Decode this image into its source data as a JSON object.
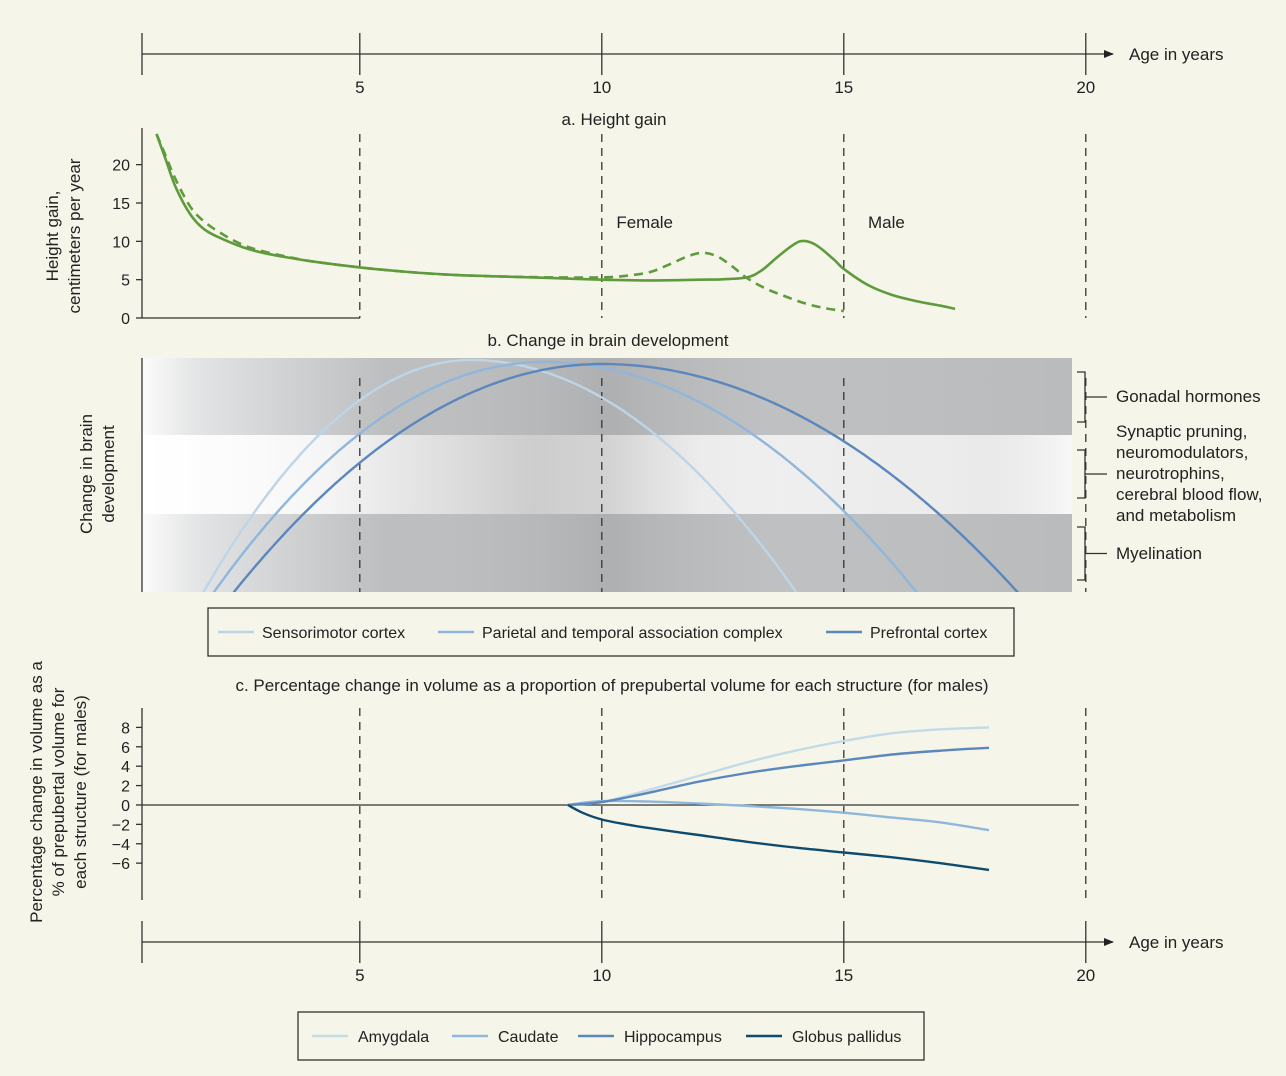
{
  "chart_data": [
    {
      "type": "axis",
      "name": "top-age-axis",
      "xlabel": "Age in years",
      "ticks": [
        5,
        10,
        15,
        20
      ],
      "xlim": [
        0.5,
        20.7
      ]
    },
    {
      "type": "line",
      "title": "a. Height gain",
      "ylabel": [
        "Height gain,",
        "centimeters per year"
      ],
      "xlim": [
        0.5,
        20.7
      ],
      "ylim": [
        0,
        24
      ],
      "yticks": [
        0,
        5,
        10,
        15,
        20
      ],
      "dashed_years": [
        5,
        10,
        15,
        20
      ],
      "annotations": [
        {
          "text": "Female",
          "x": 10.3,
          "y": 12.5
        },
        {
          "text": "Male",
          "x": 15.5,
          "y": 12.5
        }
      ],
      "series": [
        {
          "style": "solid",
          "color": "#5f9a3d",
          "x": [
            0.8,
            1.0,
            1.2,
            1.5,
            1.8,
            2.2,
            2.6,
            3.0,
            3.5,
            4.0,
            5.0,
            6.0,
            7.0,
            8.0,
            9.0,
            10.0,
            11.0,
            12.0,
            12.5,
            13.0,
            13.3,
            13.6,
            13.9,
            14.1,
            14.3,
            14.5,
            14.8,
            15.0,
            15.5,
            16.0,
            16.5,
            17.0,
            17.3
          ],
          "y": [
            24,
            20.5,
            17.0,
            13.5,
            11.5,
            10.2,
            9.2,
            8.5,
            7.9,
            7.4,
            6.6,
            6.0,
            5.6,
            5.4,
            5.2,
            5.0,
            4.9,
            5.0,
            5.05,
            5.3,
            6.2,
            7.8,
            9.3,
            10.0,
            9.9,
            9.2,
            7.6,
            6.4,
            4.3,
            3.0,
            2.2,
            1.6,
            1.2
          ]
        },
        {
          "style": "dashed",
          "color": "#5f9a3d",
          "x": [
            0.8,
            1.0,
            1.2,
            1.5,
            1.8,
            2.2,
            2.6,
            3.0,
            3.5,
            4.0,
            5.0,
            6.0,
            7.0,
            8.0,
            9.0,
            10.0,
            10.5,
            11.0,
            11.4,
            11.8,
            12.1,
            12.4,
            12.7,
            13.0,
            13.4,
            13.8,
            14.2,
            14.6,
            15.0
          ],
          "y": [
            24,
            21.0,
            18.0,
            14.5,
            12.5,
            10.8,
            9.5,
            8.7,
            8.0,
            7.4,
            6.6,
            6.0,
            5.6,
            5.4,
            5.3,
            5.3,
            5.5,
            6.0,
            7.0,
            8.1,
            8.5,
            8.0,
            6.7,
            5.2,
            3.8,
            2.8,
            1.9,
            1.3,
            0.9
          ]
        }
      ]
    },
    {
      "type": "area",
      "title": "b. Change in brain development",
      "ylabel": [
        "Change in brain",
        "development"
      ],
      "xlim": [
        0.5,
        20.7
      ],
      "dashed_years": [
        5,
        10,
        15,
        20
      ],
      "bands": [
        {
          "label": [
            "Gonadal hormones"
          ],
          "color": "#b9bbbd"
        },
        {
          "label": [
            "Synaptic pruning,",
            "neuromodulators,",
            "neurotrophins,",
            "cerebral blood flow,",
            "and metabolism"
          ],
          "color": "#ededed"
        },
        {
          "label": [
            "Myelination"
          ],
          "color": "#b9bbbd"
        }
      ],
      "series": [
        {
          "name": "Sensorimotor cortex",
          "color": "#bdd5e6",
          "peak_x": 7.3,
          "start_x": 1.7,
          "end_x": 14.1
        },
        {
          "name": "Parietal and temporal association complex",
          "color": "#90b6dc",
          "peak_x": 8.8,
          "start_x": 1.9,
          "end_x": 16.6
        },
        {
          "name": "Prefrontal cortex",
          "color": "#5b87bd",
          "peak_x": 10.0,
          "start_x": 2.3,
          "end_x": 18.7
        }
      ]
    },
    {
      "type": "line",
      "title": "c. Percentage change in volume as a proportion of prepubertal volume for each structure (for males)",
      "ylabel": [
        "Percentage change in volume as a",
        "% of prepubertal volume for",
        "each structure (for males)"
      ],
      "xlim": [
        0.5,
        20.7
      ],
      "ylim": [
        -9.8,
        10
      ],
      "yticks": [
        -6,
        -4,
        -2,
        0,
        2,
        4,
        6,
        8
      ],
      "dashed_years": [
        5,
        10,
        15,
        20
      ],
      "series": [
        {
          "name": "Amygdala",
          "color": "#c3dbe8",
          "x": [
            9.3,
            10.0,
            11.0,
            12.0,
            13.0,
            14.0,
            15.0,
            16.0,
            17.0,
            18.0
          ],
          "y": [
            0,
            0.3,
            1.6,
            3.0,
            4.4,
            5.6,
            6.6,
            7.4,
            7.8,
            8.0
          ]
        },
        {
          "name": "Caudate",
          "color": "#90b6dc",
          "x": [
            9.3,
            10.0,
            11.0,
            12.0,
            13.0,
            14.0,
            15.0,
            16.0,
            17.0,
            18.0
          ],
          "y": [
            0,
            0.4,
            0.35,
            0.15,
            -0.1,
            -0.4,
            -0.8,
            -1.3,
            -1.8,
            -2.6
          ]
        },
        {
          "name": "Hippocampus",
          "color": "#5b87bd",
          "x": [
            9.3,
            10.0,
            11.0,
            12.0,
            13.0,
            14.0,
            15.0,
            16.0,
            17.0,
            18.0
          ],
          "y": [
            0,
            0.3,
            1.3,
            2.4,
            3.3,
            4.0,
            4.6,
            5.2,
            5.6,
            5.9
          ]
        },
        {
          "name": "Globus pallidus",
          "color": "#0f4b6e",
          "x": [
            9.3,
            9.6,
            10.0,
            10.5,
            11.0,
            12.0,
            13.0,
            14.0,
            15.0,
            16.0,
            17.0,
            18.0
          ],
          "y": [
            0,
            -0.8,
            -1.5,
            -2.0,
            -2.4,
            -3.1,
            -3.8,
            -4.4,
            -4.9,
            -5.4,
            -6.0,
            -6.7
          ]
        }
      ]
    },
    {
      "type": "axis",
      "name": "bottom-age-axis",
      "xlabel": "Age in years",
      "ticks": [
        5,
        10,
        15,
        20
      ],
      "xlim": [
        0.5,
        20.7
      ]
    }
  ],
  "colors": {
    "background": "#f5f6e9",
    "height_curve": "#5f9a3d",
    "band_dark": "#b9bbbd",
    "band_light": "#ededed"
  }
}
